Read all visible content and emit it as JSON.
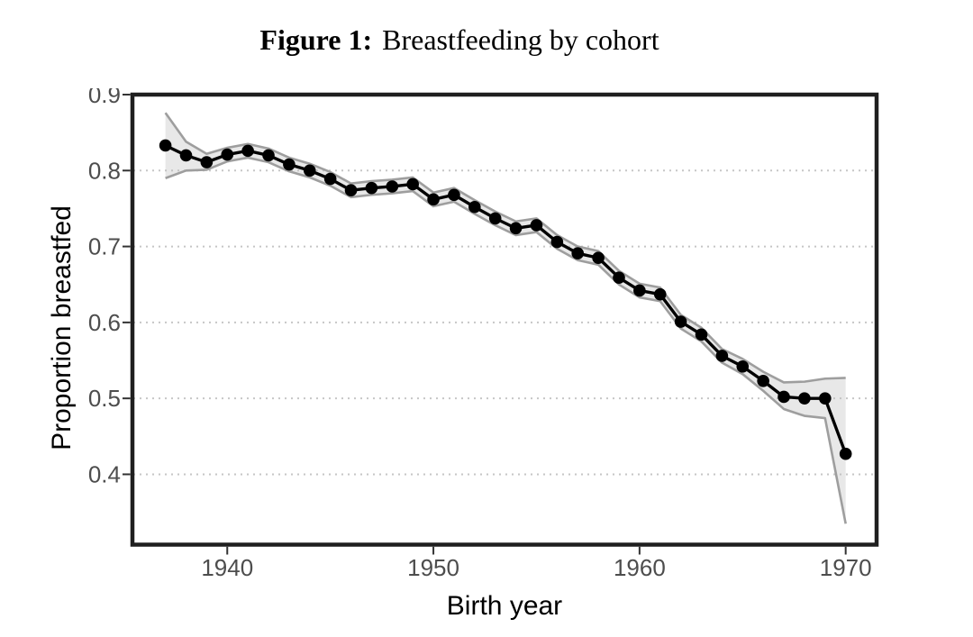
{
  "figure": {
    "caption_label": "Figure 1:",
    "caption_title": "Breastfeeding by cohort"
  },
  "chart_data": {
    "type": "line",
    "title": "Figure 1: Breastfeeding by cohort",
    "xlabel": "Birth year",
    "ylabel": "Proportion breastfed",
    "x": [
      1937,
      1938,
      1939,
      1940,
      1941,
      1942,
      1943,
      1944,
      1945,
      1946,
      1947,
      1948,
      1949,
      1950,
      1951,
      1952,
      1953,
      1954,
      1955,
      1956,
      1957,
      1958,
      1959,
      1960,
      1961,
      1962,
      1963,
      1964,
      1965,
      1966,
      1967,
      1968,
      1969,
      1970
    ],
    "series": [
      {
        "name": "Proportion breastfed",
        "values": [
          0.833,
          0.82,
          0.811,
          0.821,
          0.826,
          0.82,
          0.808,
          0.8,
          0.789,
          0.774,
          0.777,
          0.779,
          0.782,
          0.762,
          0.768,
          0.752,
          0.737,
          0.724,
          0.728,
          0.706,
          0.691,
          0.685,
          0.659,
          0.642,
          0.637,
          0.601,
          0.584,
          0.556,
          0.542,
          0.523,
          0.502,
          0.5,
          0.5,
          0.427
        ]
      }
    ],
    "ci": {
      "upper": [
        0.876,
        0.838,
        0.822,
        0.83,
        0.835,
        0.829,
        0.817,
        0.809,
        0.798,
        0.783,
        0.786,
        0.788,
        0.791,
        0.771,
        0.777,
        0.761,
        0.746,
        0.733,
        0.737,
        0.715,
        0.7,
        0.694,
        0.668,
        0.651,
        0.646,
        0.61,
        0.593,
        0.565,
        0.552,
        0.535,
        0.521,
        0.522,
        0.526,
        0.527
      ],
      "lower": [
        0.79,
        0.8,
        0.801,
        0.812,
        0.817,
        0.811,
        0.799,
        0.791,
        0.78,
        0.765,
        0.768,
        0.77,
        0.773,
        0.753,
        0.759,
        0.743,
        0.728,
        0.715,
        0.719,
        0.697,
        0.682,
        0.676,
        0.65,
        0.633,
        0.628,
        0.592,
        0.575,
        0.547,
        0.532,
        0.51,
        0.486,
        0.477,
        0.474,
        0.335
      ]
    },
    "xticks": [
      1940,
      1950,
      1960,
      1970
    ],
    "yticks": [
      0.4,
      0.5,
      0.6,
      0.7,
      0.8,
      0.9
    ],
    "xlim": [
      1935.4,
      1971.5
    ],
    "ylim": [
      0.3074,
      0.9
    ],
    "grid": "horizontal-dotted",
    "legend": "none",
    "marker": "filled-circle",
    "colors": {
      "line": "#000000",
      "point": "#000000",
      "ribbon_fill": "rgba(190,190,190,0.35)",
      "ribbon_edge": "#9e9e9e",
      "grid": "#c6c6c6",
      "axis_text": "#4d4d4d",
      "tick": "#333333",
      "panel_border": "#1f1f1f",
      "background": "#ffffff"
    }
  }
}
